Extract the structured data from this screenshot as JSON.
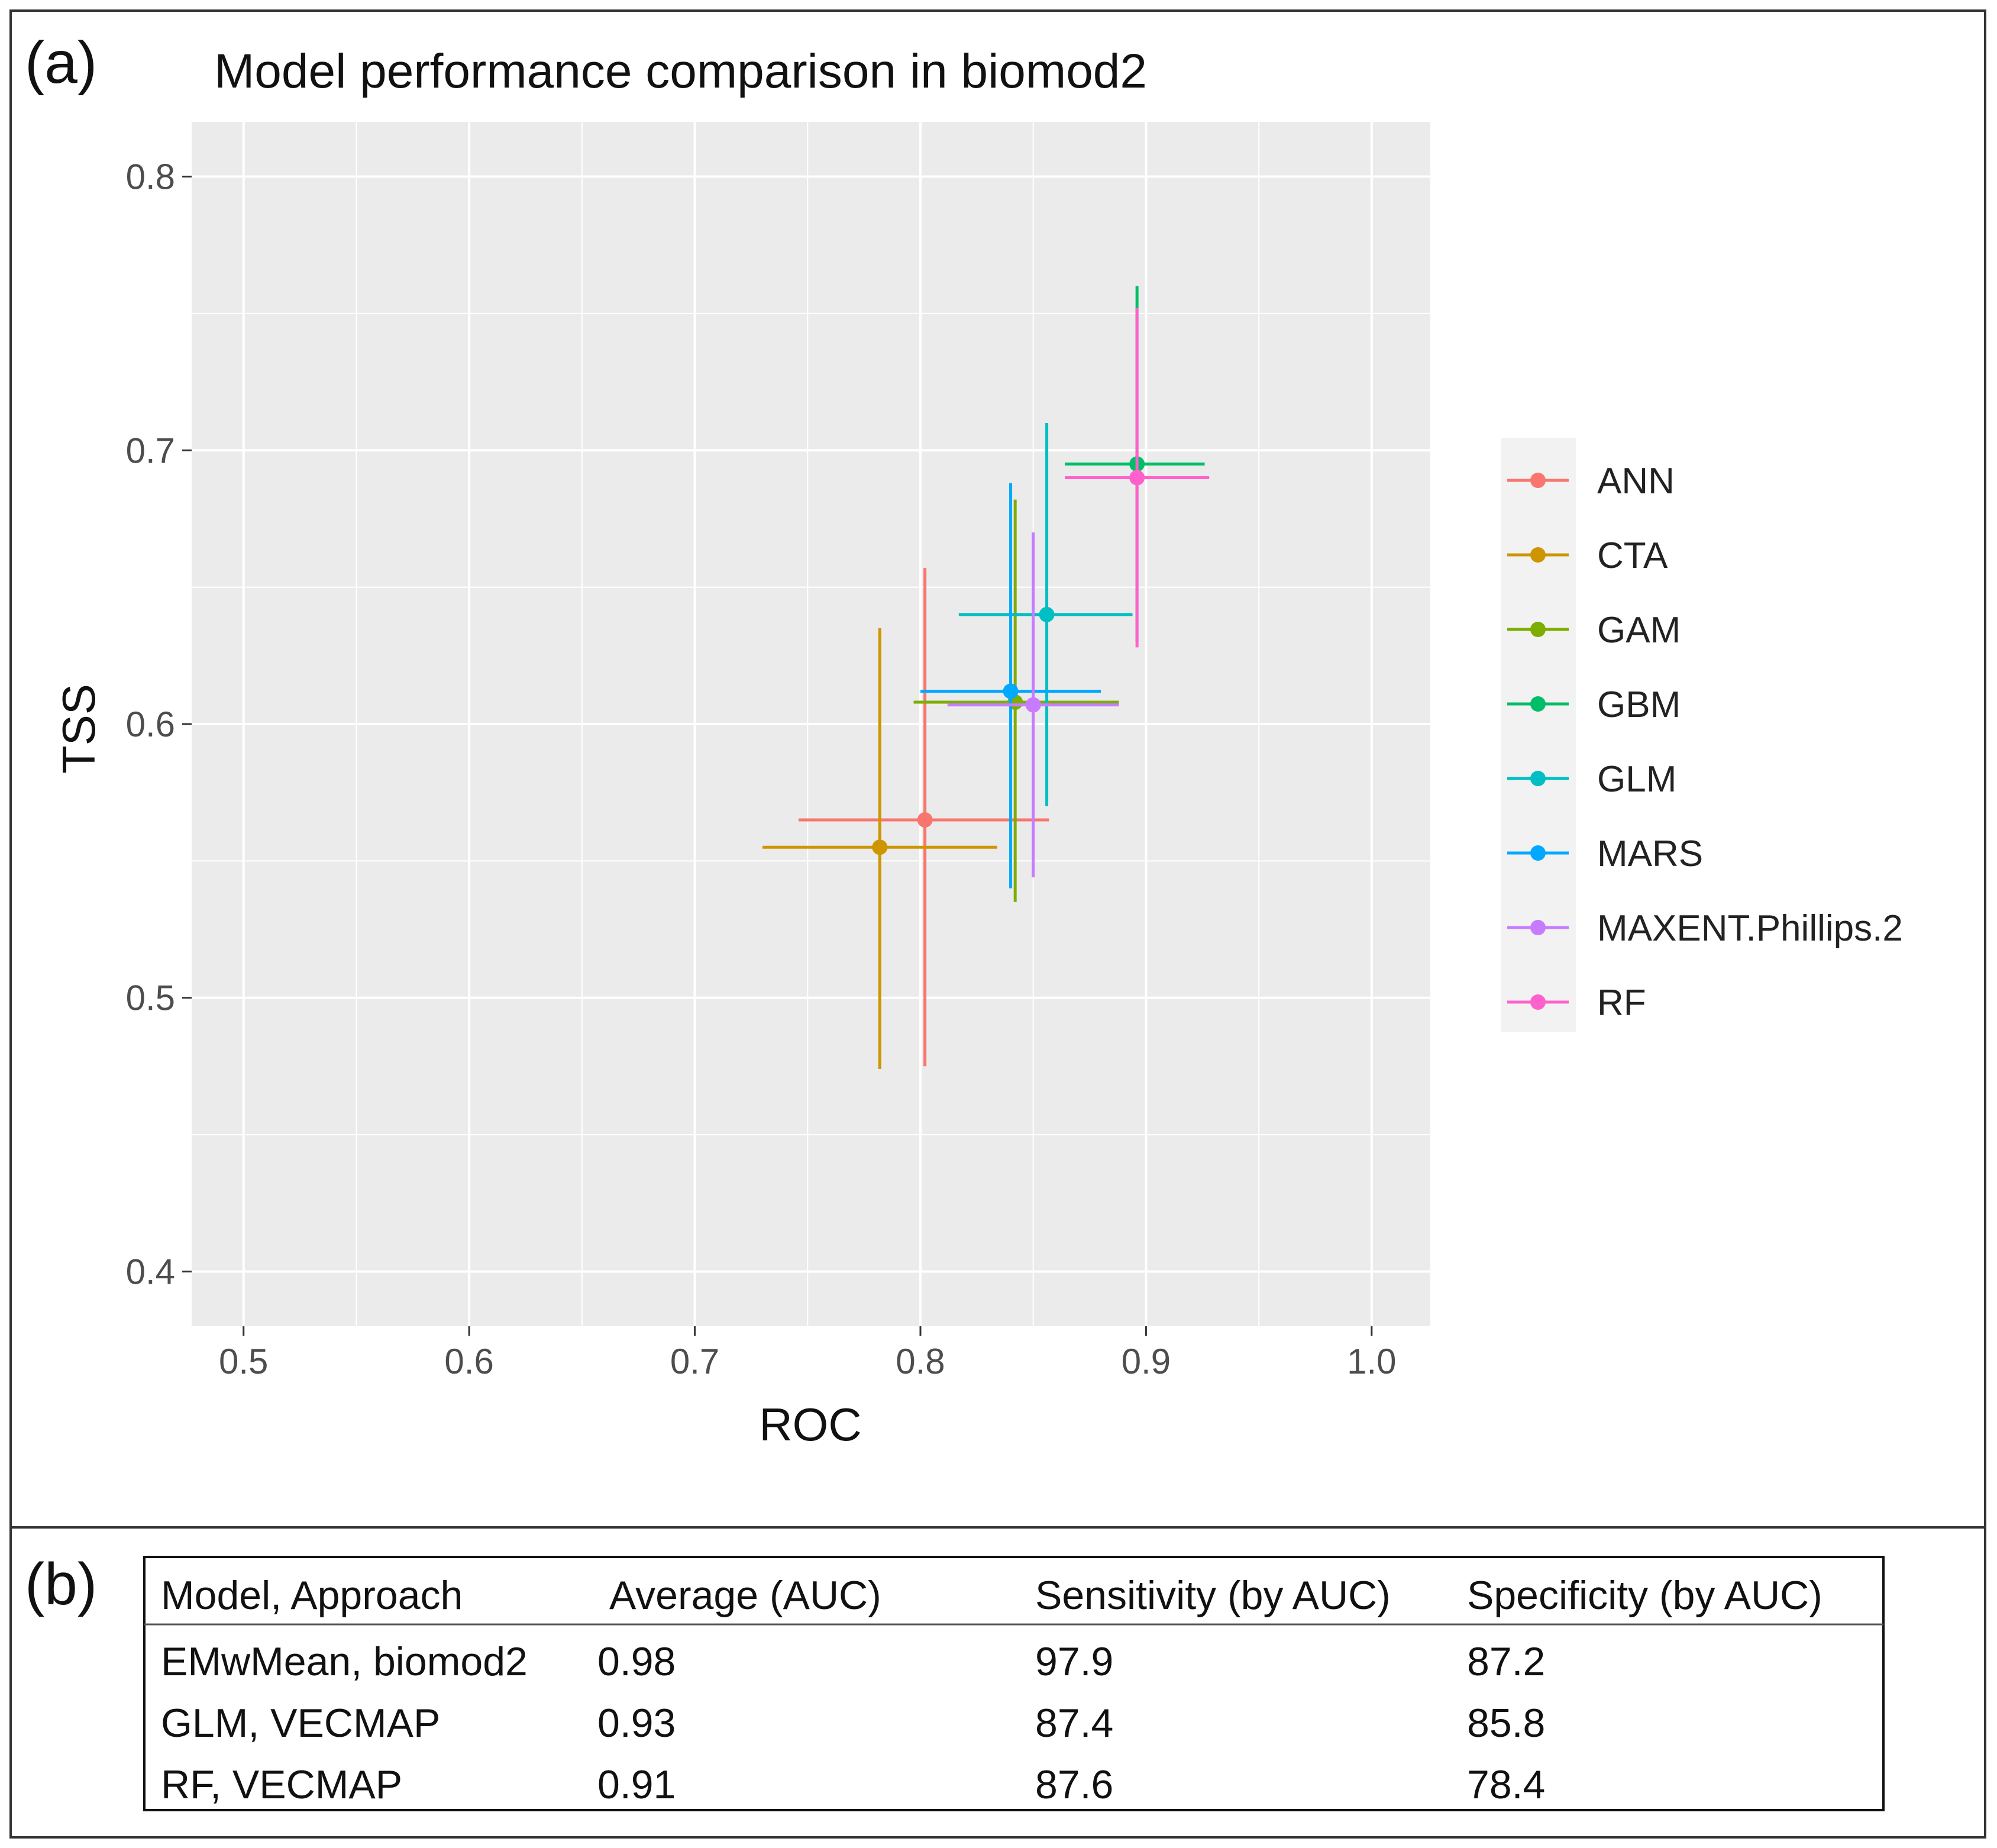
{
  "panel_a": {
    "label": "(a)"
  },
  "panel_b": {
    "label": "(b)",
    "table": {
      "headers": [
        "Model, Approach",
        "Average (AUC)",
        "Sensitivity (by AUC)",
        "Specificity (by AUC)"
      ],
      "rows": [
        [
          "EMwMean, biomod2",
          "0.98",
          "97.9",
          "87.2"
        ],
        [
          "GLM, VECMAP",
          "0.93",
          "87.4",
          "85.8"
        ],
        [
          "RF, VECMAP",
          "0.91",
          "87.6",
          "78.4"
        ]
      ]
    }
  },
  "chart_data": {
    "type": "scatter",
    "title": "Model performance comparison in biomod2",
    "xlabel": "ROC",
    "ylabel": "TSS",
    "xlim": [
      0.477,
      1.026
    ],
    "ylim": [
      0.38,
      0.82
    ],
    "xticks": [
      0.5,
      0.6,
      0.7,
      0.8,
      0.9,
      1.0
    ],
    "xtick_labels": [
      "0.5",
      "0.6",
      "0.7",
      "0.8",
      "0.9",
      "1.0"
    ],
    "yticks": [
      0.4,
      0.5,
      0.6,
      0.7,
      0.8
    ],
    "ytick_labels": [
      "0.4",
      "0.5",
      "0.6",
      "0.7",
      "0.8"
    ],
    "grid": true,
    "legend_position": "right",
    "series": [
      {
        "name": "ANN",
        "color": "#F8766D",
        "x": 0.802,
        "y": 0.565,
        "x_err": [
          0.746,
          0.857
        ],
        "y_err": [
          0.475,
          0.657
        ]
      },
      {
        "name": "CTA",
        "color": "#CD9600",
        "x": 0.782,
        "y": 0.555,
        "x_err": [
          0.73,
          0.834
        ],
        "y_err": [
          0.474,
          0.635
        ]
      },
      {
        "name": "GAM",
        "color": "#7CAE00",
        "x": 0.842,
        "y": 0.608,
        "x_err": [
          0.797,
          0.888
        ],
        "y_err": [
          0.535,
          0.682
        ]
      },
      {
        "name": "GBM",
        "color": "#00BE67",
        "x": 0.896,
        "y": 0.695,
        "x_err": [
          0.864,
          0.926
        ],
        "y_err": [
          0.63,
          0.76
        ]
      },
      {
        "name": "GLM",
        "color": "#00BFC4",
        "x": 0.856,
        "y": 0.64,
        "x_err": [
          0.817,
          0.894
        ],
        "y_err": [
          0.57,
          0.71
        ]
      },
      {
        "name": "MARS",
        "color": "#00A9FF",
        "x": 0.84,
        "y": 0.612,
        "x_err": [
          0.8,
          0.88
        ],
        "y_err": [
          0.54,
          0.688
        ]
      },
      {
        "name": "MAXENT.Phillips.2",
        "color": "#C77CFF",
        "x": 0.85,
        "y": 0.607,
        "x_err": [
          0.812,
          0.888
        ],
        "y_err": [
          0.544,
          0.67
        ]
      },
      {
        "name": "RF",
        "color": "#FF61CC",
        "x": 0.896,
        "y": 0.69,
        "x_err": [
          0.864,
          0.928
        ],
        "y_err": [
          0.628,
          0.752
        ]
      }
    ]
  }
}
